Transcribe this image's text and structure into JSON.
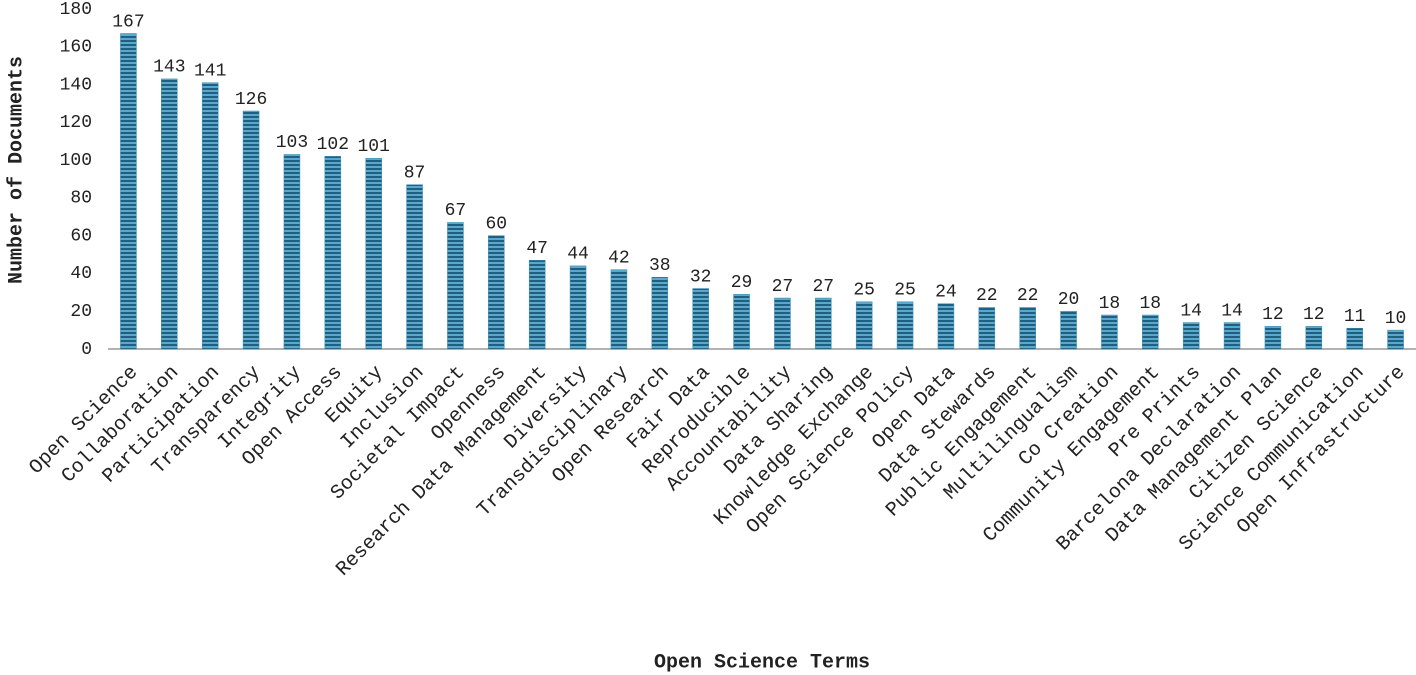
{
  "chart_data": {
    "type": "bar",
    "x_label": "Open Science Terms",
    "y_label": "Number of Documents",
    "categories": [
      "Open Science",
      "Collaboration",
      "Participation",
      "Transparency",
      "Integrity",
      "Open Access",
      "Equity",
      "Inclusion",
      "Societal Impact",
      "Openness",
      "Research Data Management",
      "Diversity",
      "Transdisciplinary",
      "Open Research",
      "Fair Data",
      "Reproducible",
      "Accountability",
      "Data Sharing",
      "Knowledge Exchange",
      "Open Science Policy",
      "Open Data",
      "Data Stewards",
      "Public Engagement",
      "Multilingualism",
      "Co Creation",
      "Community Engagement",
      "Pre Prints",
      "Barcelona Declaration",
      "Data Management Plan",
      "Citizen Science",
      "Science Communication",
      "Open Infrastructure"
    ],
    "values": [
      167,
      143,
      141,
      126,
      103,
      102,
      101,
      87,
      67,
      60,
      47,
      44,
      42,
      38,
      32,
      29,
      27,
      27,
      25,
      25,
      24,
      22,
      22,
      20,
      18,
      18,
      14,
      14,
      12,
      12,
      11,
      10
    ],
    "color": "#3a8fb7",
    "ylim": [
      0,
      180
    ],
    "yticks": [
      0,
      20,
      40,
      60,
      80,
      100,
      120,
      140,
      160,
      180
    ],
    "grid": false
  }
}
